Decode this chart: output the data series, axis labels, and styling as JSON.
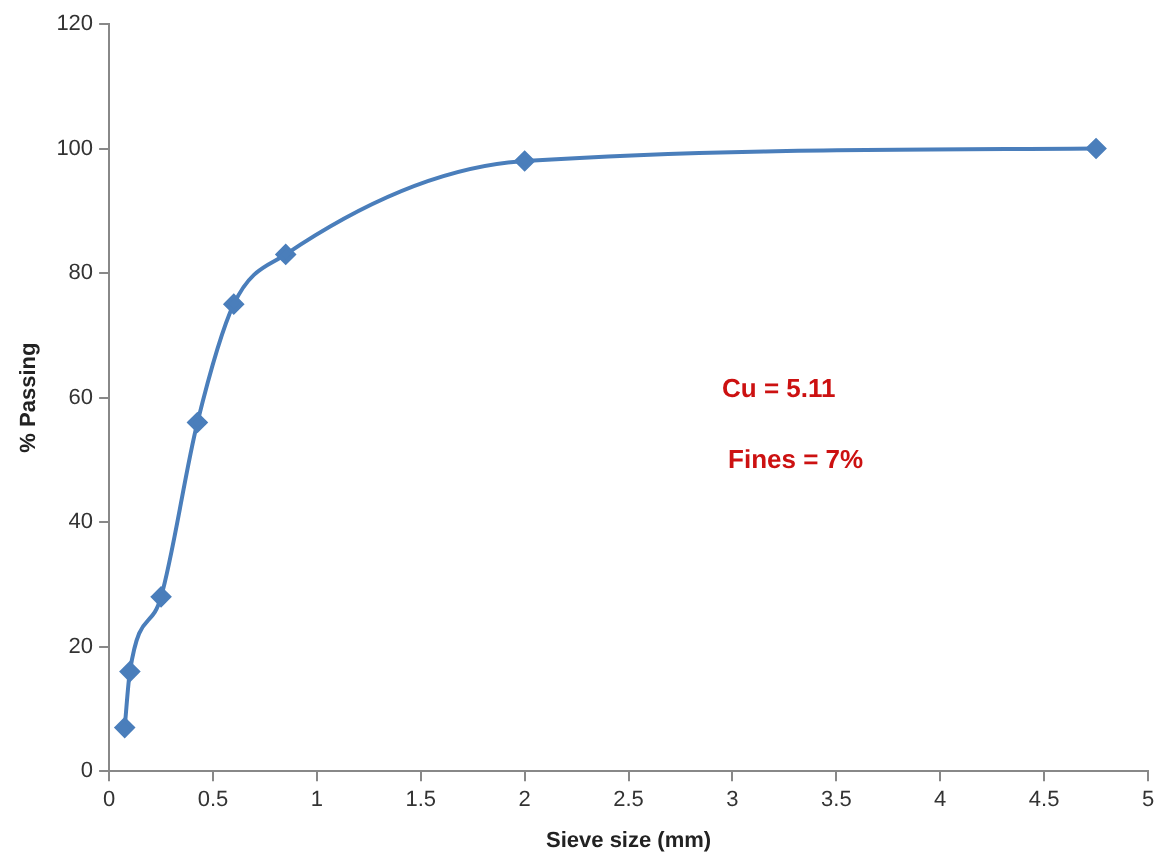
{
  "chart_data": {
    "type": "line",
    "xlabel": "Sieve size (mm)",
    "ylabel": "% Passing",
    "x": [
      0.075,
      0.1,
      0.25,
      0.425,
      0.6,
      0.85,
      2,
      4.75
    ],
    "series": [
      {
        "color": "#4a7ebb",
        "values": [
          7,
          16,
          28,
          56,
          75,
          83,
          98,
          100
        ]
      }
    ],
    "xlim": [
      0,
      5
    ],
    "xticks": [
      0,
      0.5,
      1,
      1.5,
      2,
      2.5,
      3,
      3.5,
      4,
      4.5,
      5
    ],
    "ylim": [
      0,
      120
    ],
    "yticks": [
      0,
      20,
      40,
      60,
      80,
      100,
      120
    ],
    "grid": false,
    "legend": false,
    "marker": "diamond",
    "line_style": "solid",
    "annotations": [
      "Cu = 5.11",
      "Fines = 7%"
    ]
  }
}
